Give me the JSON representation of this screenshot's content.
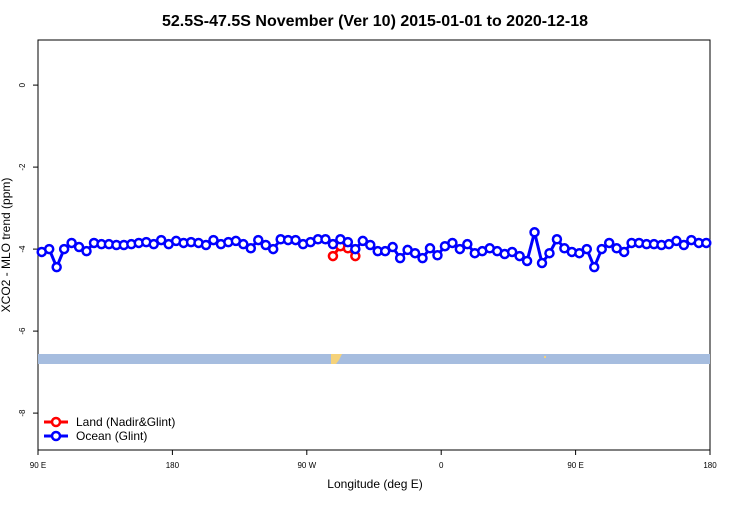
{
  "chart_data": {
    "type": "line",
    "title": "52.5S-47.5S November (Ver 10)   2015-01-01 to 2020-12-18",
    "x_label": "Longitude (deg E)",
    "y_label": "XCO2 - MLO trend (ppm)",
    "xlim": [
      90,
      540
    ],
    "ylim": [
      -8.9,
      1.1
    ],
    "xticks": [
      {
        "value": 90,
        "label": "90 E"
      },
      180,
      {
        "value": 270,
        "label": "90 W"
      },
      {
        "value": 360,
        "label": "0"
      },
      {
        "value": 450,
        "label": "90 E"
      },
      {
        "value": 540,
        "label": "180"
      }
    ],
    "yticks": [
      0,
      -2,
      -4,
      -6,
      -8
    ],
    "legend": "bottom-left",
    "series": [
      {
        "name": "Land (Nadir&Glint)",
        "color": "#ff0000",
        "x": [
          287.5,
          292.5,
          297.5,
          302.5
        ],
        "values": [
          -4.17,
          -3.93,
          -3.98,
          -4.17
        ]
      },
      {
        "name": "Ocean (Glint)",
        "color": "#0000ff",
        "x": [
          92.5,
          97.5,
          102.5,
          107.5,
          112.5,
          117.5,
          122.5,
          127.5,
          132.5,
          137.5,
          142.5,
          147.5,
          152.5,
          157.5,
          162.5,
          167.5,
          172.5,
          177.5,
          182.5,
          187.5,
          192.5,
          197.5,
          202.5,
          207.5,
          212.5,
          217.5,
          222.5,
          227.5,
          232.5,
          237.5,
          242.5,
          247.5,
          252.5,
          257.5,
          262.5,
          267.5,
          272.5,
          277.5,
          282.5,
          287.5,
          292.5,
          297.5,
          302.5,
          307.5,
          312.5,
          317.5,
          322.5,
          327.5,
          332.5,
          337.5,
          342.5,
          347.5,
          352.5,
          357.5,
          362.5,
          367.5,
          372.5,
          377.5,
          382.5,
          387.5,
          392.5,
          397.5,
          402.5,
          407.5,
          412.5,
          417.5,
          422.5,
          427.5,
          432.5,
          437.5,
          442.5,
          447.5,
          452.5,
          457.5,
          462.5,
          467.5,
          472.5,
          477.5,
          482.5,
          487.5,
          492.5,
          497.5,
          502.5,
          507.5,
          512.5,
          517.5,
          522.5,
          527.5,
          532.5,
          537.5
        ],
        "values": [
          -4.07,
          -4.0,
          -4.44,
          -4.0,
          -3.85,
          -3.95,
          -4.05,
          -3.85,
          -3.88,
          -3.88,
          -3.9,
          -3.9,
          -3.88,
          -3.85,
          -3.83,
          -3.88,
          -3.78,
          -3.88,
          -3.8,
          -3.85,
          -3.83,
          -3.85,
          -3.9,
          -3.78,
          -3.88,
          -3.83,
          -3.8,
          -3.88,
          -3.98,
          -3.78,
          -3.9,
          -4.0,
          -3.76,
          -3.78,
          -3.78,
          -3.88,
          -3.83,
          -3.76,
          -3.76,
          -3.88,
          -3.76,
          -3.83,
          -4.0,
          -3.8,
          -3.9,
          -4.05,
          -4.05,
          -3.95,
          -4.22,
          -4.02,
          -4.1,
          -4.22,
          -3.98,
          -4.15,
          -3.93,
          -3.85,
          -4.0,
          -3.88,
          -4.1,
          -4.05,
          -3.98,
          -4.05,
          -4.12,
          -4.07,
          -4.17,
          -4.29,
          -3.59,
          -4.34,
          -4.1,
          -3.76,
          -3.98,
          -4.07,
          -4.1,
          -4.0,
          -4.44,
          -4.0,
          -3.85,
          -3.98,
          -4.07,
          -3.85,
          -3.85,
          -3.88,
          -3.88,
          -3.9,
          -3.88,
          -3.8,
          -3.9,
          -3.78,
          -3.85,
          -3.85
        ]
      }
    ]
  }
}
